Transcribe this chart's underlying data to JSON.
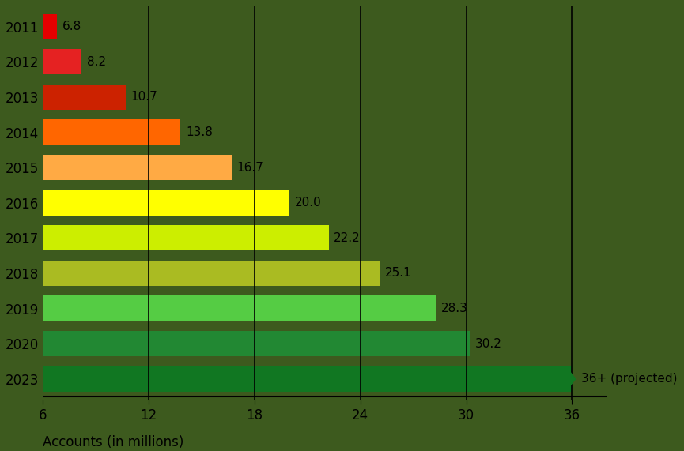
{
  "years": [
    "2011",
    "2012",
    "2013",
    "2014",
    "2015",
    "2016",
    "2017",
    "2018",
    "2019",
    "2020",
    "2023"
  ],
  "values": [
    6.8,
    8.2,
    10.7,
    13.8,
    16.7,
    20.0,
    22.2,
    25.1,
    28.3,
    30.2,
    36.0
  ],
  "labels": [
    "6.8",
    "8.2",
    "10.7",
    "13.8",
    "16.7",
    "20.0",
    "22.2",
    "25.1",
    "28.3",
    "30.2",
    "36+ (projected)"
  ],
  "bar_colors": [
    "#e60000",
    "#e52222",
    "#cc2200",
    "#ff6600",
    "#ffaa44",
    "#ffff00",
    "#ccee00",
    "#aabb22",
    "#55cc44",
    "#228833",
    "#117722"
  ],
  "background_color": "#3d5a1e",
  "xlim": [
    6,
    38
  ],
  "xticks": [
    6,
    12,
    18,
    24,
    30,
    36
  ],
  "xlabel": "Accounts (in millions)",
  "grid_color": "#000000",
  "bar_height": 0.72,
  "label_fontsize": 11,
  "tick_fontsize": 12,
  "xlabel_fontsize": 12
}
